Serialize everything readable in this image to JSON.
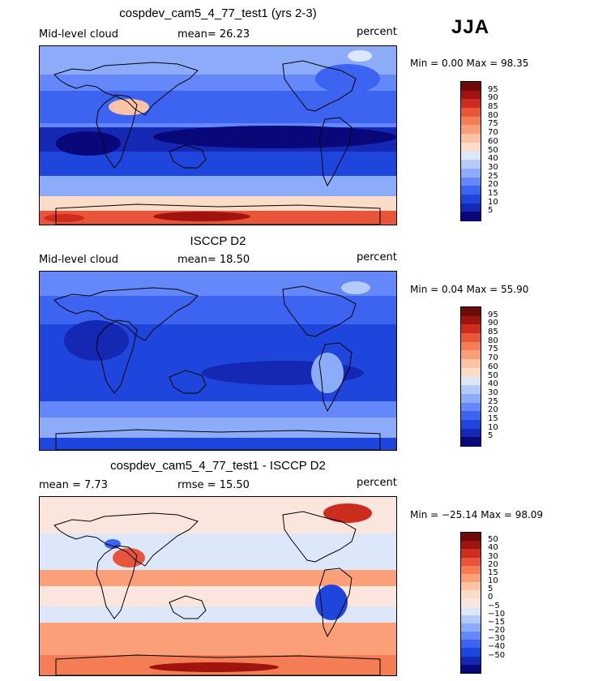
{
  "figure": {
    "season": "JJA",
    "units_note": "percent"
  },
  "colors": {
    "cloud_scale": [
      "#08087a",
      "#1428b4",
      "#1e46dc",
      "#3c64f0",
      "#6488fa",
      "#8cacfa",
      "#b4cbfa",
      "#dce8fa",
      "#fadcc8",
      "#fac3a5",
      "#fa9f78",
      "#f57d55",
      "#e8553a",
      "#cd2d1e",
      "#a0140f",
      "#6e0a08"
    ],
    "diff_scale": [
      "#08087a",
      "#1428b4",
      "#1e46dc",
      "#3c64f0",
      "#6488fa",
      "#8cacfa",
      "#b4cbfa",
      "#dce8fa",
      "#fae6dc",
      "#fadcc8",
      "#fac3a5",
      "#fa9f78",
      "#f57d55",
      "#e8553a",
      "#cd2d1e",
      "#a0140f",
      "#6e0a08"
    ]
  },
  "panels": [
    {
      "title": "cospdev_cam5_4_77_test1 (yrs 2-3)",
      "left_label": "Mid-level cloud",
      "center_label": "mean=  26.23",
      "right_label": "percent",
      "minmax": "Min =   0.00 Max =  98.35",
      "colorbar_labels": [
        "95",
        "90",
        "85",
        "80",
        "75",
        "70",
        "60",
        "50",
        "40",
        "30",
        "25",
        "20",
        "15",
        "10",
        "5"
      ],
      "field": "model"
    },
    {
      "title": "ISCCP D2",
      "left_label": "Mid-level cloud",
      "center_label": "mean=  18.50",
      "right_label": "percent",
      "minmax": "Min =   0.04 Max =  55.90",
      "colorbar_labels": [
        "95",
        "90",
        "85",
        "80",
        "75",
        "70",
        "60",
        "50",
        "40",
        "30",
        "25",
        "20",
        "15",
        "10",
        "5"
      ],
      "field": "obs"
    },
    {
      "title": "cospdev_cam5_4_77_test1 - ISCCP D2",
      "left_label": "mean =   7.73",
      "center_label": "rmse =  15.50",
      "right_label": "percent",
      "minmax": "Min = −25.14 Max =  98.09",
      "colorbar_labels": [
        "50",
        "40",
        "30",
        "20",
        "15",
        "10",
        "5",
        "0",
        "−5",
        "−10",
        "−15",
        "−20",
        "−30",
        "−40",
        "−50"
      ],
      "field": "diff"
    }
  ]
}
